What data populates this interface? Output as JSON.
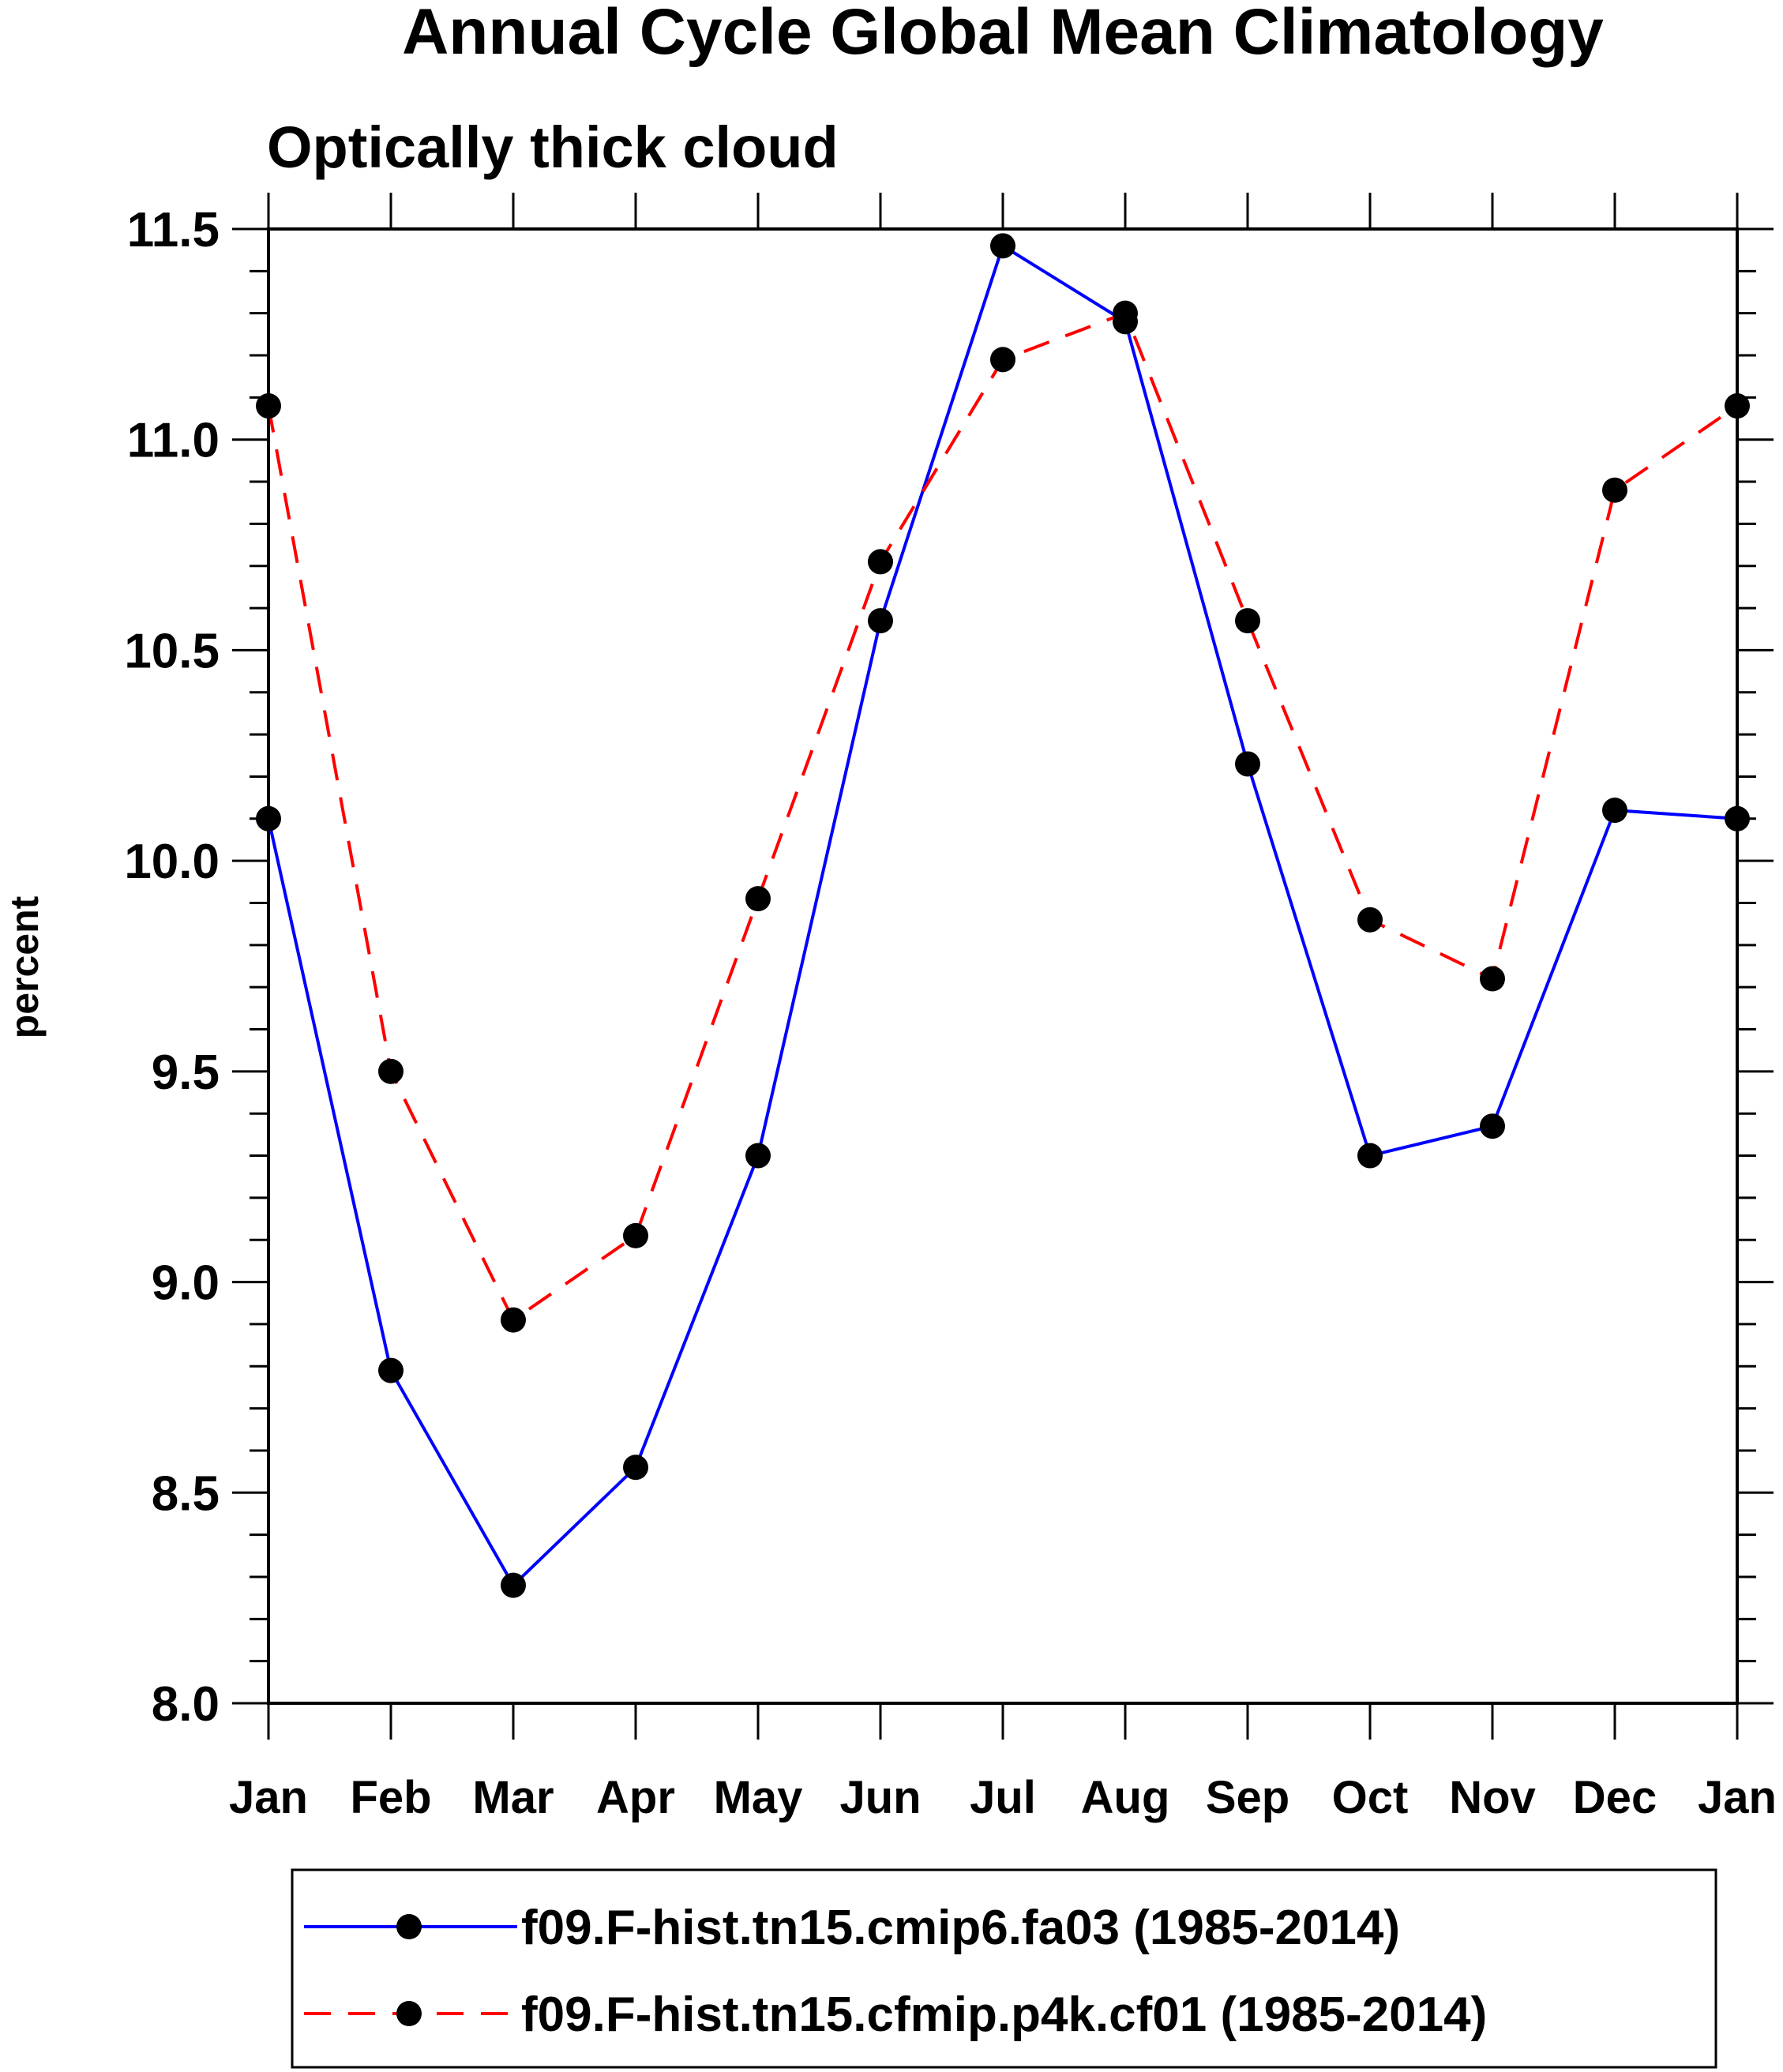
{
  "chart_data": {
    "type": "line",
    "title": "Annual Cycle Global Mean Climatology",
    "subtitle": "Optically thick cloud",
    "xlabel": "",
    "ylabel": "percent",
    "categories": [
      "Jan",
      "Feb",
      "Mar",
      "Apr",
      "May",
      "Jun",
      "Jul",
      "Aug",
      "Sep",
      "Oct",
      "Nov",
      "Dec",
      "Jan"
    ],
    "ylim": [
      8.0,
      11.5
    ],
    "yticks": [
      "8.0",
      "8.5",
      "9.0",
      "9.5",
      "10.0",
      "10.5",
      "11.0",
      "11.5"
    ],
    "grid": false,
    "legend_position": "bottom",
    "series": [
      {
        "name": "f09.F-hist.tn15.cmip6.fa03 (1985-2014)",
        "color": "#0000ff",
        "dash": "solid",
        "values": [
          10.1,
          8.79,
          8.28,
          8.56,
          9.3,
          10.57,
          11.46,
          11.28,
          10.23,
          9.3,
          9.37,
          10.12,
          10.1
        ]
      },
      {
        "name": "f09.F-hist.tn15.cfmip.p4k.cf01 (1985-2014)",
        "color": "#ff0000",
        "dash": "dashed",
        "values": [
          11.08,
          9.5,
          8.91,
          9.11,
          9.91,
          10.71,
          11.19,
          11.3,
          10.57,
          9.86,
          9.72,
          10.88,
          11.08
        ]
      }
    ]
  }
}
